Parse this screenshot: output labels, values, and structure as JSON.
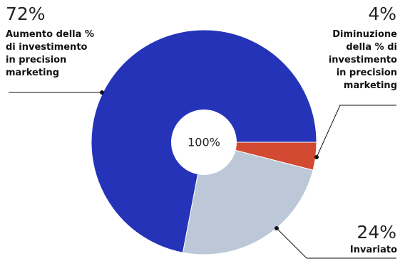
{
  "chart_data": {
    "type": "pie",
    "categories": [
      "Aumento della % di investimento in precision marketing",
      "Diminuzione della % di investimento in precision marketing",
      "Invariato"
    ],
    "values": [
      72,
      4,
      24
    ],
    "value_labels": [
      "72%",
      "4%",
      "24%"
    ],
    "center_label": "100%",
    "colors": [
      "#2433b8",
      "#d24a32",
      "#bcc8d8"
    ],
    "title": "",
    "legend": "none"
  },
  "labels": {
    "increase": {
      "pct": "72%",
      "desc": "Aumento della %\ndi investimento\nin precision\nmarketing"
    },
    "decrease": {
      "pct": "4%",
      "desc": "Diminuzione\ndella % di\ninvestimento\nin precision\nmarketing"
    },
    "unchanged": {
      "pct": "24%",
      "desc": "Invariato"
    }
  }
}
